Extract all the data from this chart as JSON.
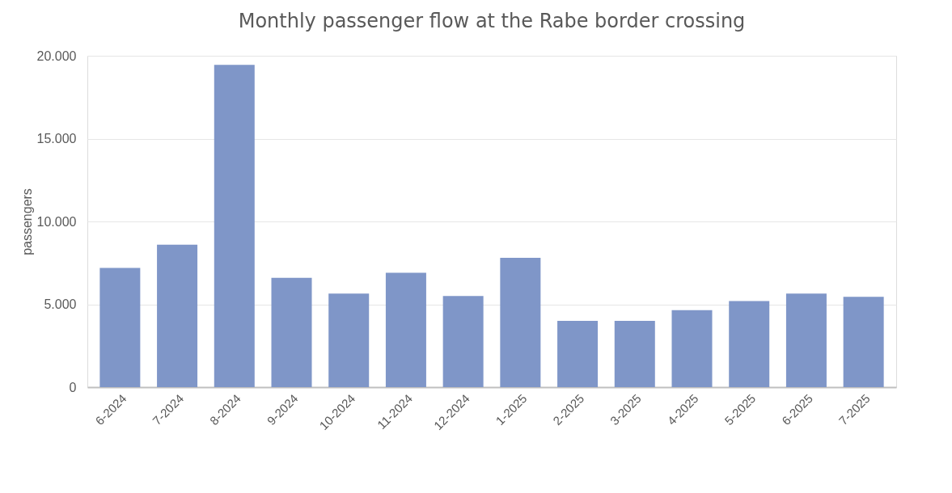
{
  "chart_data": {
    "type": "bar",
    "title": "Monthly passenger flow at the Rabe border crossing",
    "ylabel": "passengers",
    "categories": [
      "6-2024",
      "7-2024",
      "8-2024",
      "9-2024",
      "10-2024",
      "11-2024",
      "12-2024",
      "1-2025",
      "2-2025",
      "3-2025",
      "4-2025",
      "5-2025",
      "6-2025",
      "7-2025"
    ],
    "values": [
      7200,
      8600,
      19450,
      6600,
      5650,
      6900,
      5500,
      7800,
      4000,
      4000,
      4650,
      5200,
      5650,
      5450
    ],
    "color": "#7f96c8",
    "ylim": [
      0,
      20000
    ],
    "yticks": [
      0,
      {
        "value": 5000,
        "label": "5.000"
      },
      {
        "value": 10000,
        "label": "10.000"
      },
      {
        "value": 15000,
        "label": "15.000"
      },
      {
        "value": 20000,
        "label": "20.000"
      }
    ],
    "grid": "y"
  }
}
